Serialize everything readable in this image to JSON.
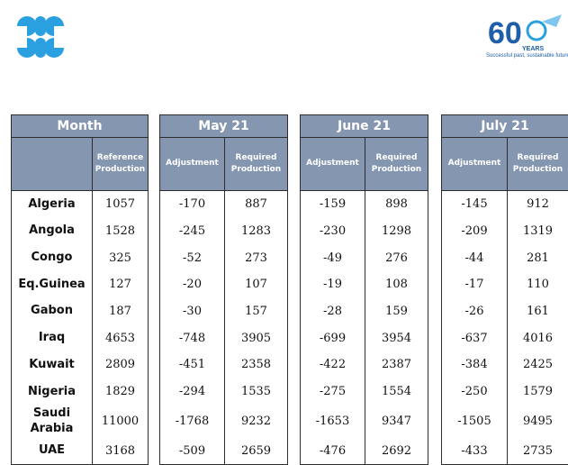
{
  "logos": {
    "left_icon": "opec-logo-icon",
    "right_number": "60",
    "right_word": "YEARS",
    "right_tagline": "Successful past, sustainable future",
    "colors": {
      "opec_blue": "#2aa0e0",
      "anniv_blue": "#1f5ea8",
      "header_fill": "#8496b0"
    }
  },
  "headers": {
    "month": "Month",
    "reference_production": "Reference Production",
    "adjustment": "Adjustment",
    "required_production": "Required Production",
    "periods": [
      "May 21",
      "June 21",
      "July 21"
    ]
  },
  "countries": [
    "Algeria",
    "Angola",
    "Congo",
    "Eq.Guinea",
    "Gabon",
    "Iraq",
    "Kuwait",
    "Nigeria",
    "Saudi Arabia",
    "UAE"
  ],
  "reference": [
    "1057",
    "1528",
    "325",
    "127",
    "187",
    "4653",
    "2809",
    "1829",
    "11000",
    "3168"
  ],
  "may": {
    "adjustment": [
      "-170",
      "-245",
      "-52",
      "-20",
      "-30",
      "-748",
      "-451",
      "-294",
      "-1768",
      "-509"
    ],
    "required": [
      "887",
      "1283",
      "273",
      "107",
      "157",
      "3905",
      "2358",
      "1535",
      "9232",
      "2659"
    ]
  },
  "june": {
    "adjustment": [
      "-159",
      "-230",
      "-49",
      "-19",
      "-28",
      "-699",
      "-422",
      "-275",
      "-1653",
      "-476"
    ],
    "required": [
      "898",
      "1298",
      "276",
      "108",
      "159",
      "3954",
      "2387",
      "1554",
      "9347",
      "2692"
    ]
  },
  "july": {
    "adjustment": [
      "-145",
      "-209",
      "-44",
      "-17",
      "-26",
      "-637",
      "-384",
      "-250",
      "-1505",
      "-433"
    ],
    "required": [
      "912",
      "1319",
      "281",
      "110",
      "161",
      "4016",
      "2425",
      "1579",
      "9495",
      "2735"
    ]
  }
}
